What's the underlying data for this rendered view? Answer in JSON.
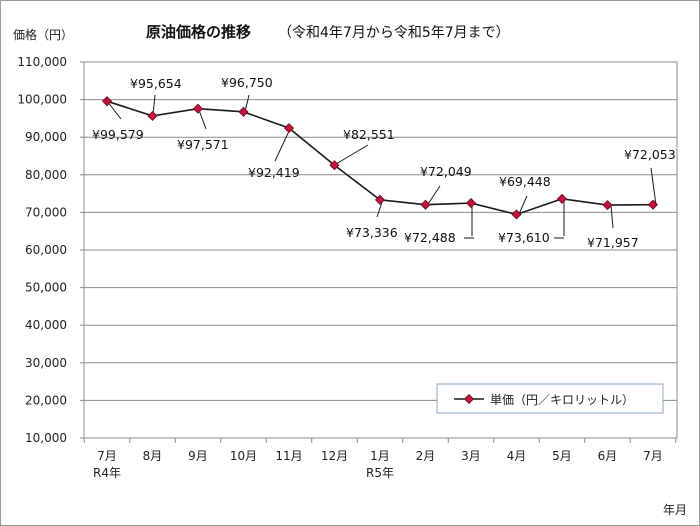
{
  "chart_data": {
    "type": "line",
    "title": "原油価格の推移",
    "subtitle": "（令和4年7月から令和5年7月まで）",
    "ylabel": "価格（円）",
    "xlabel": "年月",
    "ylim": [
      10000,
      110000
    ],
    "ystep": 10000,
    "yticks": [
      "10,000",
      "20,000",
      "30,000",
      "40,000",
      "50,000",
      "60,000",
      "70,000",
      "80,000",
      "90,000",
      "100,000",
      "110,000"
    ],
    "grid": true,
    "legend_position": "bottom-right",
    "categories": [
      "7月",
      "8月",
      "9月",
      "10月",
      "11月",
      "12月",
      "1月",
      "2月",
      "3月",
      "4月",
      "5月",
      "6月",
      "7月"
    ],
    "year_labels": [
      "R4年",
      "",
      "",
      "",
      "",
      "",
      "R5年",
      "",
      "",
      "",
      "",
      "",
      ""
    ],
    "series": [
      {
        "name": "単価（円／キロリットル）",
        "values": [
          99579,
          95654,
          97571,
          96750,
          92419,
          82551,
          73336,
          72049,
          72488,
          69448,
          73610,
          71957,
          72053
        ],
        "labels": [
          "¥99,579",
          "¥95,654",
          "¥97,571",
          "¥96,750",
          "¥92,419",
          "¥82,551",
          "¥73,336",
          "¥72,049",
          "¥72,488",
          "¥69,448",
          "¥73,610",
          "¥71,957",
          "¥72,053"
        ]
      }
    ]
  },
  "colors": {
    "line": "#1a1a1a",
    "marker": "#c0143c",
    "plot_bg": "#ffffff",
    "grid": "#8c8c8c"
  }
}
